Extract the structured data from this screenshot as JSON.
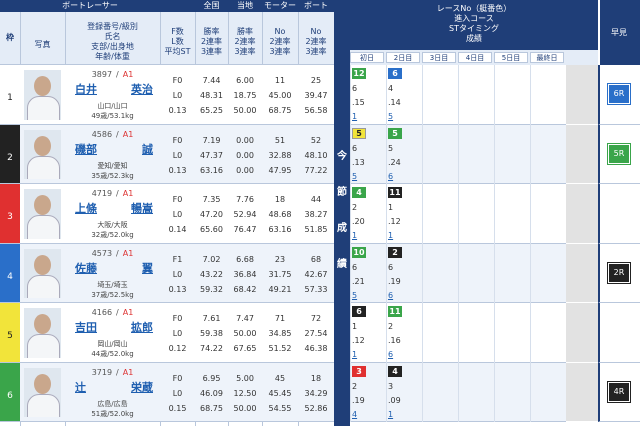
{
  "header": {
    "racer": "ボートレーサー",
    "waku": "枠",
    "photo": "写真",
    "profile": [
      "登録番号/級別",
      "氏名",
      "支部/出身地",
      "年齢/体重"
    ],
    "reg_sep": "/",
    "fl": [
      "F数",
      "L数",
      "平均ST"
    ],
    "national": "全国",
    "local": "当地",
    "motor": "モーター",
    "boat": "ボート",
    "rate_labels": [
      "勝率",
      "2連率",
      "3連率"
    ],
    "no_labels": [
      "No",
      "2連率",
      "3連率"
    ],
    "series_title": [
      "今",
      "節",
      "成",
      "績"
    ],
    "results_header": [
      "レースNo（艇番色）",
      "進入コース",
      "STタイミング",
      "成績"
    ],
    "days": [
      "初日",
      "2日目",
      "3日目",
      "4日目",
      "5日目",
      "最終日"
    ],
    "hayami": "早見"
  },
  "racers": [
    {
      "waku": "1",
      "color": "#ffffff",
      "reg": "3897",
      "cls": "A1",
      "name": [
        "白井",
        "英治"
      ],
      "branch": "山口/山口",
      "age": "49歳/53.1kg",
      "fl": [
        "F0",
        "L0",
        "0.13"
      ],
      "national": [
        "7.44",
        "48.31",
        "65.25"
      ],
      "local": [
        "6.00",
        "18.75",
        "50.00"
      ],
      "motor": [
        "11",
        "45.00",
        "68.75"
      ],
      "boat": [
        "25",
        "39.47",
        "56.58"
      ],
      "results": [
        {
          "race": "12",
          "color": "#3aa54a",
          "course": "6",
          "st": ".15",
          "rank": "1"
        },
        {
          "race": "6",
          "color": "#2a6fc9",
          "course": "4",
          "st": ".14",
          "rank": "5"
        }
      ],
      "hayami": {
        "text": "6R",
        "color": "#2a6fc9"
      }
    },
    {
      "waku": "2",
      "color": "#222222",
      "reg": "4586",
      "cls": "A1",
      "name": [
        "磯部",
        "誠"
      ],
      "branch": "愛知/愛知",
      "age": "35歳/52.3kg",
      "fl": [
        "F0",
        "L0",
        "0.13"
      ],
      "national": [
        "7.19",
        "47.37",
        "63.16"
      ],
      "local": [
        "0.00",
        "0.00",
        "0.00"
      ],
      "motor": [
        "51",
        "32.88",
        "47.95"
      ],
      "boat": [
        "52",
        "48.10",
        "77.22"
      ],
      "results": [
        {
          "race": "5",
          "color": "#f2e43a",
          "course": "6",
          "st": ".13",
          "rank": "5"
        },
        {
          "race": "5",
          "color": "#3aa54a",
          "course": "5",
          "st": ".24",
          "rank": "6"
        }
      ],
      "hayami": {
        "text": "5R",
        "color": "#3aa54a"
      }
    },
    {
      "waku": "3",
      "color": "#e03030",
      "reg": "4719",
      "cls": "A1",
      "name": [
        "上條",
        "暢嵩"
      ],
      "branch": "大阪/大阪",
      "age": "32歳/52.0kg",
      "fl": [
        "F0",
        "L0",
        "0.14"
      ],
      "national": [
        "7.35",
        "47.20",
        "65.60"
      ],
      "local": [
        "7.76",
        "52.94",
        "76.47"
      ],
      "motor": [
        "18",
        "48.68",
        "63.16"
      ],
      "boat": [
        "44",
        "38.27",
        "51.85"
      ],
      "results": [
        {
          "race": "4",
          "color": "#3aa54a",
          "course": "2",
          "st": ".20",
          "rank": "1"
        },
        {
          "race": "11",
          "color": "#222222",
          "course": "1",
          "st": ".12",
          "rank": "1"
        }
      ],
      "hayami": null
    },
    {
      "waku": "4",
      "color": "#2a6fc9",
      "reg": "4573",
      "cls": "A1",
      "name": [
        "佐藤",
        "翼"
      ],
      "branch": "埼玉/埼玉",
      "age": "37歳/52.5kg",
      "fl": [
        "F1",
        "L0",
        "0.13"
      ],
      "national": [
        "7.02",
        "43.22",
        "59.32"
      ],
      "local": [
        "6.68",
        "36.84",
        "68.42"
      ],
      "motor": [
        "23",
        "31.75",
        "49.21"
      ],
      "boat": [
        "68",
        "42.67",
        "57.33"
      ],
      "results": [
        {
          "race": "10",
          "color": "#3aa54a",
          "course": "6",
          "st": ".21",
          "rank": "5"
        },
        {
          "race": "2",
          "color": "#222222",
          "course": "6",
          "st": ".19",
          "rank": "6"
        }
      ],
      "hayami": {
        "text": "2R",
        "color": "#222222"
      }
    },
    {
      "waku": "5",
      "color": "#f2e43a",
      "reg": "4166",
      "cls": "A1",
      "name": [
        "吉田",
        "拡郎"
      ],
      "branch": "岡山/岡山",
      "age": "44歳/52.0kg",
      "fl": [
        "F0",
        "L0",
        "0.12"
      ],
      "national": [
        "7.61",
        "59.38",
        "74.22"
      ],
      "local": [
        "7.47",
        "50.00",
        "67.65"
      ],
      "motor": [
        "71",
        "34.85",
        "51.52"
      ],
      "boat": [
        "72",
        "27.54",
        "46.38"
      ],
      "results": [
        {
          "race": "6",
          "color": "#222222",
          "course": "1",
          "st": ".12",
          "rank": "1"
        },
        {
          "race": "11",
          "color": "#3aa54a",
          "course": "2",
          "st": ".16",
          "rank": "6"
        }
      ],
      "hayami": null
    },
    {
      "waku": "6",
      "color": "#3aa54a",
      "reg": "3719",
      "cls": "A1",
      "name": [
        "辻",
        "栄蔵"
      ],
      "branch": "広島/広島",
      "age": "51歳/52.0kg",
      "fl": [
        "F0",
        "L0",
        "0.15"
      ],
      "national": [
        "6.95",
        "46.09",
        "68.75"
      ],
      "local": [
        "5.00",
        "12.50",
        "50.00"
      ],
      "motor": [
        "45",
        "45.45",
        "54.55"
      ],
      "boat": [
        "18",
        "34.29",
        "52.86"
      ],
      "results": [
        {
          "race": "3",
          "color": "#e03030",
          "course": "2",
          "st": ".19",
          "rank": "4"
        },
        {
          "race": "4",
          "color": "#222222",
          "course": "3",
          "st": ".09",
          "rank": "1"
        }
      ],
      "hayami": {
        "text": "4R",
        "color": "#222222"
      }
    }
  ]
}
